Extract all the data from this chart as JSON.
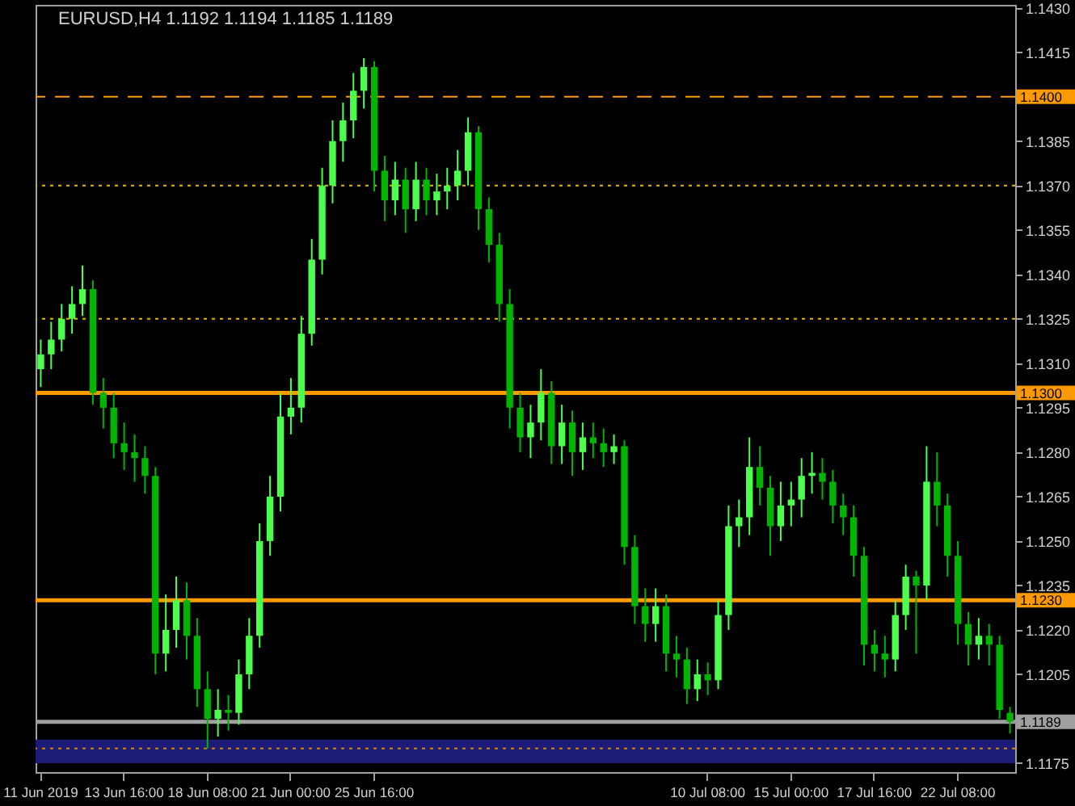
{
  "chart_data": {
    "type": "candlestick",
    "title": "EURUSD,H4  1.1192 1.1194 1.1185 1.1189",
    "categories": [
      "11 Jun 2019",
      null,
      null,
      null,
      null,
      null,
      null,
      null,
      "13 Jun 16:00",
      null,
      null,
      null,
      null,
      null,
      null,
      null,
      "18 Jun 08:00",
      null,
      null,
      null,
      null,
      null,
      null,
      null,
      "21 Jun 00:00",
      null,
      null,
      null,
      null,
      null,
      null,
      null,
      "25 Jun 16:00",
      null,
      null,
      null,
      null,
      null,
      null,
      null,
      null,
      null,
      null,
      null,
      null,
      null,
      null,
      null,
      null,
      null,
      null,
      null,
      null,
      null,
      null,
      null,
      null,
      null,
      null,
      null,
      null,
      null,
      null,
      null,
      "10 Jul 08:00",
      null,
      null,
      null,
      null,
      null,
      null,
      null,
      "15 Jul 00:00",
      null,
      null,
      null,
      null,
      null,
      null,
      null,
      "17 Jul 16:00",
      null,
      null,
      null,
      null,
      null,
      null,
      null,
      "22 Jul 08:00",
      null,
      null,
      null,
      null,
      null
    ],
    "ohlc": [
      [
        1.1308,
        1.1318,
        1.1302,
        1.1313
      ],
      [
        1.1313,
        1.1324,
        1.1308,
        1.1318
      ],
      [
        1.1318,
        1.133,
        1.1314,
        1.1325
      ],
      [
        1.1325,
        1.1336,
        1.132,
        1.133
      ],
      [
        1.133,
        1.1343,
        1.1326,
        1.1335
      ],
      [
        1.1335,
        1.1338,
        1.1296,
        1.13
      ],
      [
        1.13,
        1.1305,
        1.1288,
        1.1295
      ],
      [
        1.1295,
        1.13,
        1.1278,
        1.1283
      ],
      [
        1.1283,
        1.129,
        1.1274,
        1.128
      ],
      [
        1.128,
        1.1286,
        1.127,
        1.1278
      ],
      [
        1.1278,
        1.1282,
        1.1266,
        1.1272
      ],
      [
        1.1272,
        1.1275,
        1.1205,
        1.1212
      ],
      [
        1.1212,
        1.1232,
        1.1206,
        1.122
      ],
      [
        1.122,
        1.1238,
        1.1214,
        1.123
      ],
      [
        1.123,
        1.1236,
        1.121,
        1.1218
      ],
      [
        1.1218,
        1.1224,
        1.1194,
        1.12
      ],
      [
        1.12,
        1.1206,
        1.118,
        1.119
      ],
      [
        1.119,
        1.12,
        1.1184,
        1.1193
      ],
      [
        1.1193,
        1.1198,
        1.1186,
        1.1192
      ],
      [
        1.1192,
        1.121,
        1.1188,
        1.1205
      ],
      [
        1.1205,
        1.1224,
        1.12,
        1.1218
      ],
      [
        1.1218,
        1.1256,
        1.1214,
        1.125
      ],
      [
        1.125,
        1.1272,
        1.1245,
        1.1265
      ],
      [
        1.1265,
        1.13,
        1.126,
        1.1292
      ],
      [
        1.1292,
        1.1305,
        1.1286,
        1.1295
      ],
      [
        1.1295,
        1.1326,
        1.129,
        1.132
      ],
      [
        1.132,
        1.1352,
        1.1316,
        1.1345
      ],
      [
        1.1345,
        1.1376,
        1.134,
        1.137
      ],
      [
        1.137,
        1.1392,
        1.1364,
        1.1385
      ],
      [
        1.1385,
        1.1398,
        1.1378,
        1.1392
      ],
      [
        1.1392,
        1.1408,
        1.1386,
        1.1402
      ],
      [
        1.1402,
        1.1413,
        1.1396,
        1.141
      ],
      [
        1.141,
        1.1412,
        1.1368,
        1.1375
      ],
      [
        1.1375,
        1.138,
        1.1358,
        1.1365
      ],
      [
        1.1365,
        1.1378,
        1.136,
        1.1372
      ],
      [
        1.1372,
        1.1376,
        1.1354,
        1.1362
      ],
      [
        1.1362,
        1.1378,
        1.1358,
        1.1372
      ],
      [
        1.1372,
        1.1376,
        1.136,
        1.1365
      ],
      [
        1.1365,
        1.1374,
        1.136,
        1.1368
      ],
      [
        1.1368,
        1.1376,
        1.1362,
        1.137
      ],
      [
        1.137,
        1.1382,
        1.1365,
        1.1375
      ],
      [
        1.1375,
        1.1393,
        1.137,
        1.1388
      ],
      [
        1.1388,
        1.139,
        1.1355,
        1.1362
      ],
      [
        1.1362,
        1.1366,
        1.1344,
        1.135
      ],
      [
        1.135,
        1.1354,
        1.1324,
        1.133
      ],
      [
        1.133,
        1.1335,
        1.1288,
        1.1295
      ],
      [
        1.1295,
        1.13,
        1.128,
        1.1285
      ],
      [
        1.1285,
        1.1296,
        1.1278,
        1.129
      ],
      [
        1.129,
        1.1308,
        1.1284,
        1.13
      ],
      [
        1.13,
        1.1304,
        1.1276,
        1.1282
      ],
      [
        1.1282,
        1.1296,
        1.1276,
        1.129
      ],
      [
        1.129,
        1.1294,
        1.1272,
        1.128
      ],
      [
        1.128,
        1.129,
        1.1274,
        1.1285
      ],
      [
        1.1285,
        1.129,
        1.1278,
        1.1283
      ],
      [
        1.1283,
        1.1288,
        1.1275,
        1.128
      ],
      [
        1.128,
        1.1286,
        1.1276,
        1.1282
      ],
      [
        1.1282,
        1.1284,
        1.1242,
        1.1248
      ],
      [
        1.1248,
        1.1252,
        1.1222,
        1.1228
      ],
      [
        1.1228,
        1.1234,
        1.1216,
        1.1222
      ],
      [
        1.1222,
        1.1234,
        1.1216,
        1.1228
      ],
      [
        1.1228,
        1.1232,
        1.1206,
        1.1212
      ],
      [
        1.1212,
        1.1218,
        1.1204,
        1.121
      ],
      [
        1.121,
        1.1214,
        1.1195,
        1.12
      ],
      [
        1.12,
        1.121,
        1.1196,
        1.1205
      ],
      [
        1.1205,
        1.1209,
        1.1198,
        1.1203
      ],
      [
        1.1203,
        1.123,
        1.12,
        1.1225
      ],
      [
        1.1225,
        1.1262,
        1.122,
        1.1255
      ],
      [
        1.1255,
        1.1264,
        1.1248,
        1.1258
      ],
      [
        1.1258,
        1.1285,
        1.1252,
        1.1275
      ],
      [
        1.1275,
        1.1282,
        1.1262,
        1.1268
      ],
      [
        1.1268,
        1.1272,
        1.1245,
        1.1255
      ],
      [
        1.1255,
        1.127,
        1.125,
        1.1262
      ],
      [
        1.1262,
        1.127,
        1.1255,
        1.1264
      ],
      [
        1.1264,
        1.1278,
        1.1258,
        1.1272
      ],
      [
        1.1272,
        1.128,
        1.1266,
        1.1273
      ],
      [
        1.1273,
        1.1278,
        1.1264,
        1.127
      ],
      [
        1.127,
        1.1274,
        1.1256,
        1.1262
      ],
      [
        1.1262,
        1.1266,
        1.1252,
        1.1258
      ],
      [
        1.1258,
        1.1262,
        1.1238,
        1.1245
      ],
      [
        1.1245,
        1.1248,
        1.1208,
        1.1215
      ],
      [
        1.1215,
        1.122,
        1.1206,
        1.1212
      ],
      [
        1.1212,
        1.1218,
        1.1204,
        1.121
      ],
      [
        1.121,
        1.123,
        1.1206,
        1.1225
      ],
      [
        1.1225,
        1.1242,
        1.122,
        1.1238
      ],
      [
        1.1238,
        1.124,
        1.1212,
        1.1235
      ],
      [
        1.1235,
        1.1282,
        1.123,
        1.127
      ],
      [
        1.127,
        1.128,
        1.1255,
        1.1262
      ],
      [
        1.1262,
        1.1266,
        1.1238,
        1.1245
      ],
      [
        1.1245,
        1.125,
        1.1215,
        1.1222
      ],
      [
        1.1222,
        1.1226,
        1.1208,
        1.1215
      ],
      [
        1.1215,
        1.1224,
        1.121,
        1.1218
      ],
      [
        1.1218,
        1.1222,
        1.1208,
        1.1215
      ],
      [
        1.1215,
        1.1218,
        1.119,
        1.1193
      ],
      [
        1.1192,
        1.1194,
        1.1185,
        1.1189
      ]
    ],
    "colors": [
      "#4cff4c",
      "#4cff4c",
      "#4cff4c",
      "#4cff4c",
      "#4cff4c",
      "#00b400",
      "#00b400",
      "#00b400",
      "#00b400",
      "#00b400",
      "#00b400",
      "#00b400",
      "#4cff4c",
      "#4cff4c",
      "#00b400",
      "#00b400",
      "#00b400",
      "#4cff4c",
      "#00b400",
      "#4cff4c",
      "#4cff4c",
      "#4cff4c",
      "#4cff4c",
      "#4cff4c",
      "#4cff4c",
      "#4cff4c",
      "#4cff4c",
      "#4cff4c",
      "#4cff4c",
      "#4cff4c",
      "#4cff4c",
      "#4cff4c",
      "#00b400",
      "#00b400",
      "#4cff4c",
      "#00b400",
      "#4cff4c",
      "#00b400",
      "#4cff4c",
      "#4cff4c",
      "#4cff4c",
      "#4cff4c",
      "#00b400",
      "#00b400",
      "#00b400",
      "#00b400",
      "#00b400",
      "#4cff4c",
      "#4cff4c",
      "#00b400",
      "#4cff4c",
      "#00b400",
      "#4cff4c",
      "#00b400",
      "#00b400",
      "#4cff4c",
      "#00b400",
      "#00b400",
      "#00b400",
      "#4cff4c",
      "#00b400",
      "#00b400",
      "#00b400",
      "#4cff4c",
      "#00b400",
      "#4cff4c",
      "#4cff4c",
      "#4cff4c",
      "#4cff4c",
      "#00b400",
      "#00b400",
      "#4cff4c",
      "#4cff4c",
      "#4cff4c",
      "#4cff4c",
      "#00b400",
      "#00b400",
      "#00b400",
      "#00b400",
      "#00b400",
      "#00b400",
      "#00b400",
      "#4cff4c",
      "#4cff4c",
      "#00b400",
      "#4cff4c",
      "#00b400",
      "#00b400",
      "#00b400",
      "#00b400",
      "#4cff4c",
      "#00b400",
      "#00b400",
      "#00b400"
    ],
    "ylim": [
      1.1172,
      1.1431
    ],
    "yticks": [
      {
        "value": 1.143,
        "label": "1.1430"
      },
      1.1415,
      1.1385,
      {
        "value": 1.137,
        "label": "1.1370"
      },
      1.1355,
      {
        "value": 1.134,
        "label": "1.1340"
      },
      1.1325,
      {
        "value": 1.131,
        "label": "1.1310"
      },
      1.1295,
      {
        "value": 1.128,
        "label": "1.1280"
      },
      1.1265,
      {
        "value": 1.125,
        "label": "1.1250"
      },
      1.1235,
      {
        "value": 1.122,
        "label": "1.1220"
      },
      1.1205,
      1.1175
    ],
    "ref_lines": [
      {
        "axis": "y",
        "value": 1.14,
        "label": "1.1400",
        "color": "#ff9900",
        "line_style": "dashed"
      },
      {
        "axis": "y",
        "value": 1.137,
        "label": null,
        "color": "#e6b800",
        "line_style": "dotted"
      },
      {
        "axis": "y",
        "value": 1.1325,
        "label": null,
        "color": "#e6b800",
        "line_style": "dotted"
      },
      {
        "axis": "y",
        "value": 1.13,
        "label": "1.1300",
        "color": "#ff9900",
        "line_style": "solid"
      },
      {
        "axis": "y",
        "value": 1.123,
        "label": "1.1230",
        "color": "#ff9900",
        "line_style": "solid"
      },
      {
        "axis": "y",
        "value": 1.1189,
        "label": "1.1189",
        "color": "#a0a0a0",
        "line_style": "solid"
      },
      {
        "axis": "y",
        "value": 1.118,
        "label": null,
        "color": "#cc8800",
        "line_style": "dotted"
      }
    ],
    "bands": [
      {
        "axis": "y",
        "from": 1.1175,
        "to": 1.1183,
        "label": null,
        "color": "#1c1c78"
      }
    ],
    "grid": false
  }
}
